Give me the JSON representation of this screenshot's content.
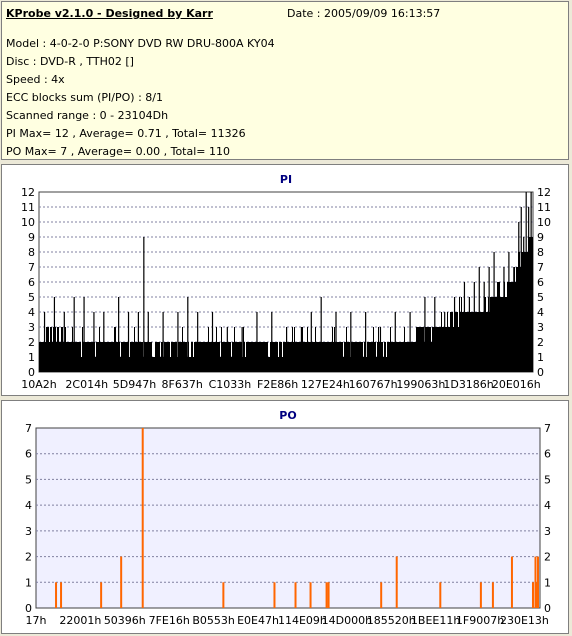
{
  "app": {
    "title": "KProbe v2.1.0 - Designed by Karr",
    "date": "Date : 2005/09/09 16:13:57"
  },
  "info": {
    "model": "Model : 4-0-2-0 P:SONY    DVD RW DRU-800A  KY04",
    "disc": "Disc : DVD-R , TTH02 []",
    "speed": "Speed : 4x",
    "ecc": "ECC blocks sum (PI/PO) : 8/1",
    "scanned_range": "Scanned range : 0 - 23104Dh",
    "pi_summary": "PI Max= 12 , Average= 0.71 , Total= 11326",
    "po_summary": "PO Max= 7 , Average= 0.00 , Total= 110"
  },
  "chart_data": [
    {
      "type": "bar",
      "title": "PI",
      "ylim": [
        0,
        12
      ],
      "yticks": [
        "0",
        "1",
        "2",
        "3",
        "4",
        "5",
        "6",
        "7",
        "8",
        "9",
        "10",
        "11",
        "12"
      ],
      "xticks": [
        "10A2h",
        "2C014h",
        "5D947h",
        "8F637h",
        "C1033h",
        "F2E86h",
        "127E24h",
        "160767h",
        "199063h",
        "1D3186h",
        "20E016h"
      ],
      "xrange": [
        "0h",
        "23104Dh"
      ],
      "color": "#000000",
      "background": "#ffffff",
      "grid": true,
      "profile": [
        [
          0.0,
          2
        ],
        [
          0.03,
          3
        ],
        [
          0.06,
          2
        ],
        [
          0.5,
          2
        ],
        [
          0.62,
          2
        ],
        [
          0.7,
          2
        ],
        [
          0.8,
          3
        ],
        [
          0.85,
          4
        ],
        [
          0.88,
          4
        ],
        [
          0.92,
          5
        ],
        [
          0.95,
          6
        ],
        [
          0.98,
          8
        ],
        [
          1.0,
          9
        ]
      ],
      "spikes": [
        [
          0.01,
          4
        ],
        [
          0.03,
          5
        ],
        [
          0.05,
          4
        ],
        [
          0.07,
          5
        ],
        [
          0.09,
          5
        ],
        [
          0.11,
          4
        ],
        [
          0.13,
          4
        ],
        [
          0.16,
          5
        ],
        [
          0.18,
          4
        ],
        [
          0.2,
          4
        ],
        [
          0.22,
          4
        ],
        [
          0.25,
          4
        ],
        [
          0.28,
          4
        ],
        [
          0.3,
          5
        ],
        [
          0.32,
          4
        ],
        [
          0.35,
          4
        ],
        [
          0.38,
          3
        ],
        [
          0.41,
          3
        ],
        [
          0.44,
          4
        ],
        [
          0.47,
          4
        ],
        [
          0.5,
          3
        ],
        [
          0.53,
          3
        ],
        [
          0.55,
          4
        ],
        [
          0.57,
          5
        ],
        [
          0.6,
          4
        ],
        [
          0.63,
          4
        ],
        [
          0.66,
          4
        ],
        [
          0.69,
          3
        ],
        [
          0.72,
          4
        ],
        [
          0.75,
          4
        ],
        [
          0.78,
          5
        ],
        [
          0.8,
          5
        ],
        [
          0.82,
          4
        ],
        [
          0.84,
          5
        ],
        [
          0.86,
          6
        ],
        [
          0.87,
          5
        ],
        [
          0.88,
          6
        ],
        [
          0.89,
          7
        ],
        [
          0.9,
          6
        ],
        [
          0.91,
          7
        ],
        [
          0.92,
          8
        ],
        [
          0.93,
          6
        ],
        [
          0.94,
          7
        ],
        [
          0.95,
          8
        ],
        [
          0.96,
          7
        ],
        [
          0.97,
          10
        ],
        [
          0.975,
          11
        ],
        [
          0.98,
          9
        ],
        [
          0.985,
          12
        ],
        [
          0.99,
          11
        ],
        [
          0.995,
          12
        ],
        [
          0.211,
          9
        ]
      ]
    },
    {
      "type": "bar",
      "title": "PO",
      "ylim": [
        0,
        7
      ],
      "yticks": [
        "0",
        "1",
        "2",
        "3",
        "4",
        "5",
        "6",
        "7"
      ],
      "xticks": [
        "17h",
        "22001h",
        "50396h",
        "7FE16h",
        "B0553h",
        "E0E47h",
        "114E09h",
        "14D000h",
        "185520h",
        "1BEE11h",
        "1F9007h",
        "230E13h"
      ],
      "xrange": [
        "0h",
        "230E13h"
      ],
      "color": "#ff6600",
      "background": "#f0f0ff",
      "grid": true,
      "bars": [
        [
          0.038,
          1
        ],
        [
          0.048,
          1
        ],
        [
          0.128,
          1
        ],
        [
          0.168,
          2
        ],
        [
          0.211,
          7
        ],
        [
          0.372,
          1
        ],
        [
          0.474,
          1
        ],
        [
          0.516,
          1
        ],
        [
          0.546,
          1
        ],
        [
          0.578,
          1
        ],
        [
          0.582,
          1
        ],
        [
          0.687,
          1
        ],
        [
          0.718,
          2
        ],
        [
          0.805,
          1
        ],
        [
          0.886,
          1
        ],
        [
          0.91,
          1
        ],
        [
          0.948,
          2
        ],
        [
          0.99,
          1
        ],
        [
          0.995,
          2
        ],
        [
          1.0,
          2
        ],
        [
          0.998,
          1
        ]
      ]
    }
  ]
}
